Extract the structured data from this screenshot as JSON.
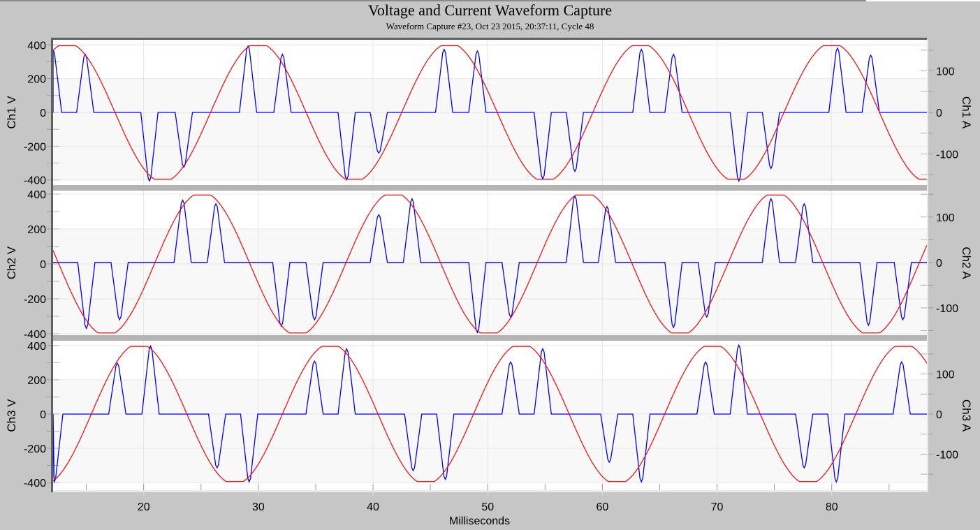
{
  "title": "Voltage and Current Waveform Capture",
  "subtitle": "Waveform Capture #23, Oct 23 2015, 20:37:11,  Cycle 48",
  "colors": {
    "voltage": "#ff0000",
    "current": "#0000ff",
    "background": "#c6c6c6",
    "separator": "#b4b4b4"
  },
  "chart_data": {
    "type": "line",
    "xlabel": "Milliseconds",
    "xlim": [
      12.1,
      88.3
    ],
    "xticks": [
      "20",
      "30",
      "40",
      "50",
      "60",
      "70",
      "80"
    ],
    "grid": true,
    "panels": [
      {
        "left_label": "Ch1 V",
        "right_label": "Ch1 A",
        "ylim_left": [
          -430,
          430
        ],
        "ylim_right": [
          -175,
          175
        ],
        "yticks_left": [
          "400",
          "200",
          "0",
          "-200",
          "-400"
        ],
        "yticks_right": [
          "100",
          "0",
          "-100"
        ],
        "voltage": {
          "axis": "left",
          "amplitude": 395,
          "frequency_hz": 60,
          "peak_at_ms": 30.0
        },
        "current_pulses": {
          "axis": "right",
          "points": [
            [
              12.1,
              150
            ],
            [
              14.9,
              140
            ],
            [
              20.5,
              -165
            ],
            [
              23.5,
              -132
            ],
            [
              29.1,
              160
            ],
            [
              32.1,
              140
            ],
            [
              37.7,
              -162
            ],
            [
              40.5,
              -98
            ],
            [
              46.2,
              152
            ],
            [
              49.1,
              148
            ],
            [
              54.8,
              -160
            ],
            [
              57.6,
              -142
            ],
            [
              63.4,
              152
            ],
            [
              66.2,
              140
            ],
            [
              71.9,
              -165
            ],
            [
              74.7,
              -135
            ],
            [
              80.5,
              155
            ],
            [
              83.4,
              138
            ]
          ]
        }
      },
      {
        "left_label": "Ch2 V",
        "right_label": "Ch2 A",
        "ylim_left": [
          -408,
          420
        ],
        "ylim_right": [
          -160,
          158
        ],
        "yticks_left": [
          "400",
          "200",
          "0",
          "-200",
          "-400"
        ],
        "yticks_right": [
          "100",
          "0",
          "-100"
        ],
        "voltage": {
          "axis": "left",
          "amplitude": 395,
          "frequency_hz": 60,
          "peak_at_ms": 25.1
        },
        "current_pulses": {
          "axis": "right",
          "points": [
            [
              15.0,
              -145
            ],
            [
              17.9,
              -126
            ],
            [
              23.4,
              137
            ],
            [
              26.3,
              129
            ],
            [
              32.0,
              -140
            ],
            [
              34.9,
              -126
            ],
            [
              40.5,
              105
            ],
            [
              43.4,
              140
            ],
            [
              49.1,
              -154
            ],
            [
              52.0,
              -120
            ],
            [
              57.6,
              146
            ],
            [
              60.4,
              123
            ],
            [
              66.2,
              -143
            ],
            [
              69.1,
              -120
            ],
            [
              74.7,
              140
            ],
            [
              77.6,
              129
            ],
            [
              83.2,
              -138
            ],
            [
              86.2,
              -126
            ]
          ]
        }
      },
      {
        "left_label": "Ch3 V",
        "right_label": "Ch3 A",
        "ylim_left": [
          -445,
          428
        ],
        "ylim_right": [
          -190,
          183
        ],
        "yticks_left": [
          "400",
          "200",
          "0",
          "-200",
          "-400"
        ],
        "yticks_right": [
          "100",
          "0",
          "-100"
        ],
        "voltage": {
          "axis": "left",
          "amplitude": 395,
          "frequency_hz": 60,
          "peak_at_ms": 19.6
        },
        "current_pulses": {
          "axis": "right",
          "points": [
            [
              12.2,
              -170
            ],
            [
              17.7,
              127
            ],
            [
              20.6,
              170
            ],
            [
              26.4,
              -134
            ],
            [
              29.2,
              -169
            ],
            [
              34.9,
              132
            ],
            [
              37.7,
              163
            ],
            [
              43.5,
              -141
            ],
            [
              46.3,
              -163
            ],
            [
              52.0,
              130
            ],
            [
              54.8,
              163
            ],
            [
              60.6,
              -120
            ],
            [
              63.4,
              -169
            ],
            [
              69.0,
              130
            ],
            [
              71.9,
              172
            ],
            [
              77.6,
              -134
            ],
            [
              80.4,
              -169
            ],
            [
              86.1,
              130
            ]
          ]
        }
      }
    ]
  }
}
